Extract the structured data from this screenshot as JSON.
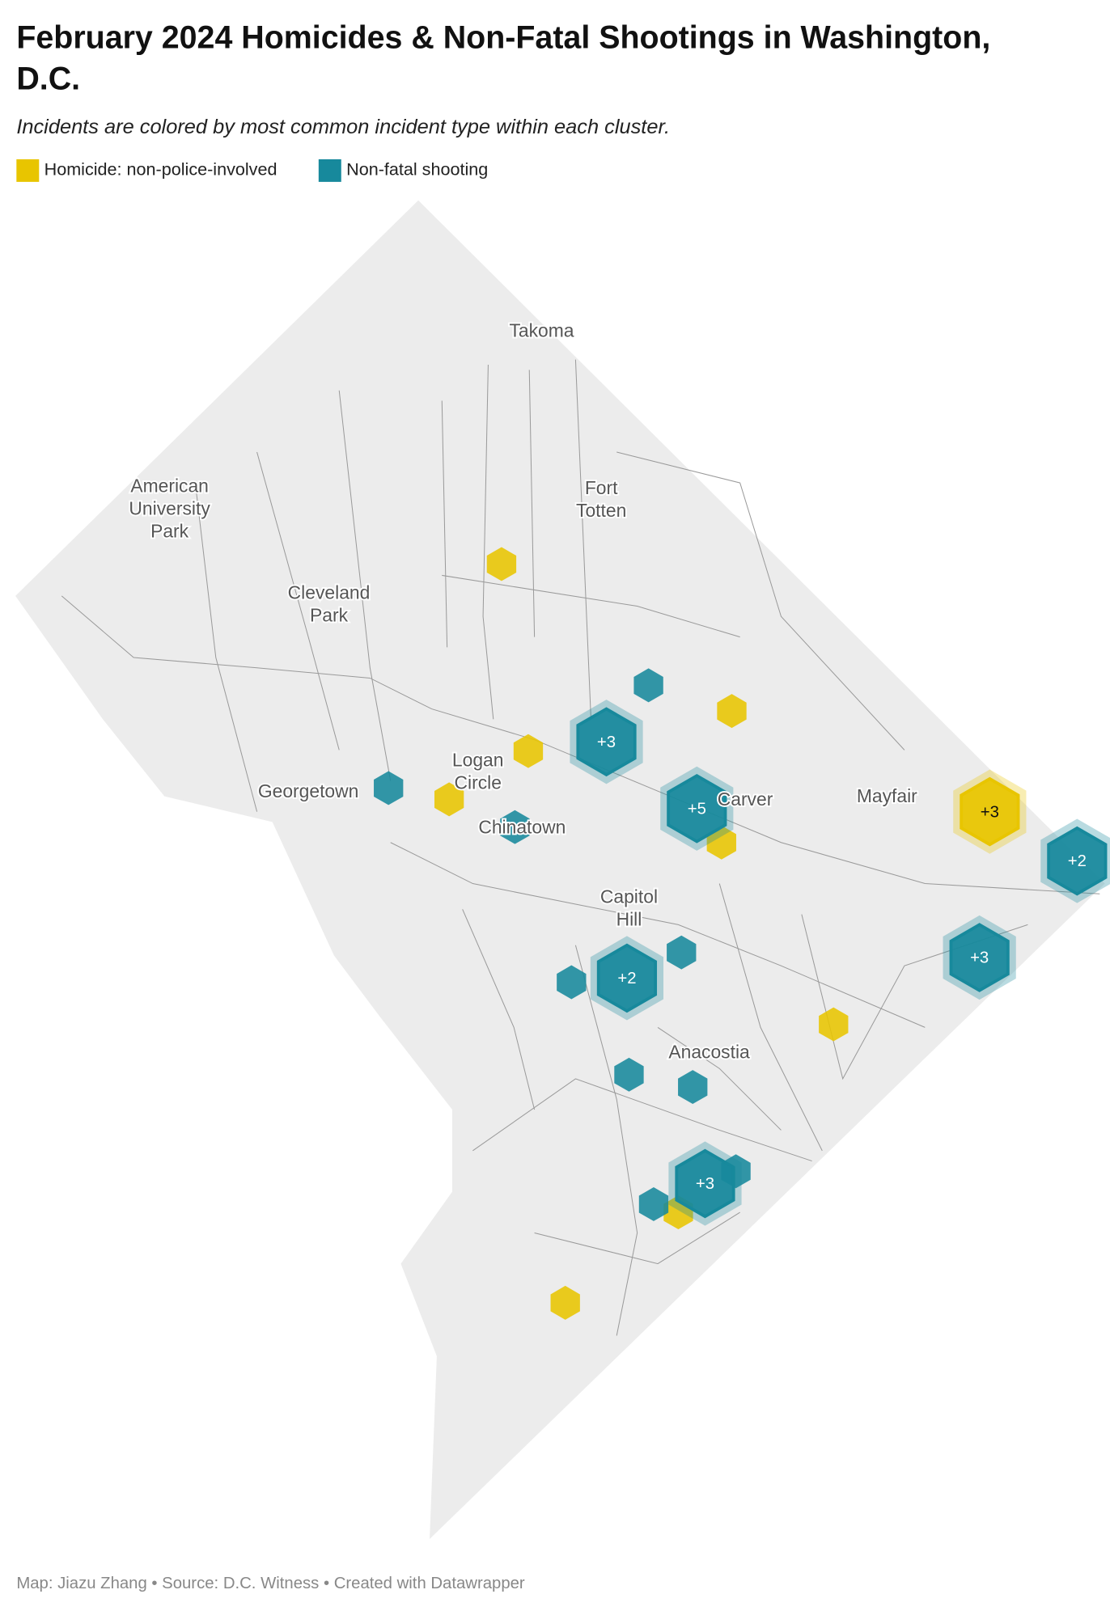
{
  "header": {
    "title_line1": "February 2024 Homicides & Non-Fatal Shootings in Washington,",
    "title_line2": "D.C.",
    "subtitle": "Incidents are colored by most common incident type within each cluster."
  },
  "legend": [
    {
      "label": "Homicide: non-police-involved",
      "color": "#e8c500"
    },
    {
      "label": "Non-fatal shooting",
      "color": "#17899c"
    }
  ],
  "places": [
    "Takoma",
    "American University Park",
    "Fort Totten",
    "Cleveland Park",
    "Logan Circle",
    "Georgetown",
    "Chinatown",
    "Carver",
    "Mayfair",
    "Capitol Hill",
    "Anacostia"
  ],
  "clusters": [
    {
      "label": "+3",
      "type": 1
    },
    {
      "label": "+5",
      "type": 1
    },
    {
      "label": "+3",
      "type": 0
    },
    {
      "label": "+2",
      "type": 1
    },
    {
      "label": "+3",
      "type": 1
    },
    {
      "label": "+2",
      "type": 1
    },
    {
      "label": "+3",
      "type": 1
    }
  ],
  "footer": "Map: Jiazu Zhang • Source: D.C. Witness • Created with Datawrapper"
}
